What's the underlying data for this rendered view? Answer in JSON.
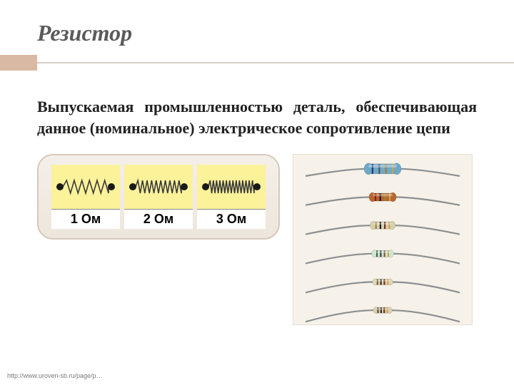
{
  "title": "Резистор",
  "title_color": "#5a5a5a",
  "accent_block_color": "#d9b9a3",
  "rule_color": "#d8cfc6",
  "body": "Выпускаемая промышленностью деталь, обеспечивающая данное (номинальное) электрическое сопротивление цепи",
  "body_color": "#222222",
  "spring_panel": {
    "bg_top": "#f4efe9",
    "bg_bottom": "#eee6dc",
    "border": "#d6c9bb",
    "cell_bg": "#fbf29a",
    "label_bg": "#ffffff",
    "coil_color": "#3a3a3a",
    "endcap_color": "#1a1a1a",
    "items": [
      {
        "label": "1 Ом",
        "turns": 6
      },
      {
        "label": "2 Ом",
        "turns": 10
      },
      {
        "label": "3 Ом",
        "turns": 14
      }
    ]
  },
  "res_panel": {
    "bg": "#f6f1e9",
    "lead_color": "#8a8f91",
    "rows": [
      {
        "body": "#6fa8c7",
        "bands": [
          "#1b3a7a",
          "#555555",
          "#a0803a",
          "#c8a24a"
        ],
        "body_w": 44,
        "body_h": 14
      },
      {
        "body": "#b8652d",
        "bands": [
          "#8b1a1a",
          "#1a1a1a",
          "#a0803a",
          "#c8a24a"
        ],
        "body_w": 32,
        "body_h": 11
      },
      {
        "body": "#d6cfae",
        "bands": [
          "#a0803a",
          "#1a1a1a",
          "#7a2a12",
          "#c8a24a"
        ],
        "body_w": 30,
        "body_h": 10
      },
      {
        "body": "#cfe3d4",
        "bands": [
          "#3a6a3a",
          "#3a3a3a",
          "#7a5a2a",
          "#c8a24a"
        ],
        "body_w": 26,
        "body_h": 9
      },
      {
        "body": "#dfd6b8",
        "bands": [
          "#7a5a2a",
          "#2a2a2a",
          "#7a2a12",
          "#c8a24a"
        ],
        "body_w": 24,
        "body_h": 8
      },
      {
        "body": "#d8d0b4",
        "bands": [
          "#6a4a28",
          "#2a2a2a",
          "#7a2a12",
          "#c8a24a"
        ],
        "body_w": 22,
        "body_h": 8
      }
    ]
  },
  "footer": "http://www.uroven-sb.ru/page/p…"
}
